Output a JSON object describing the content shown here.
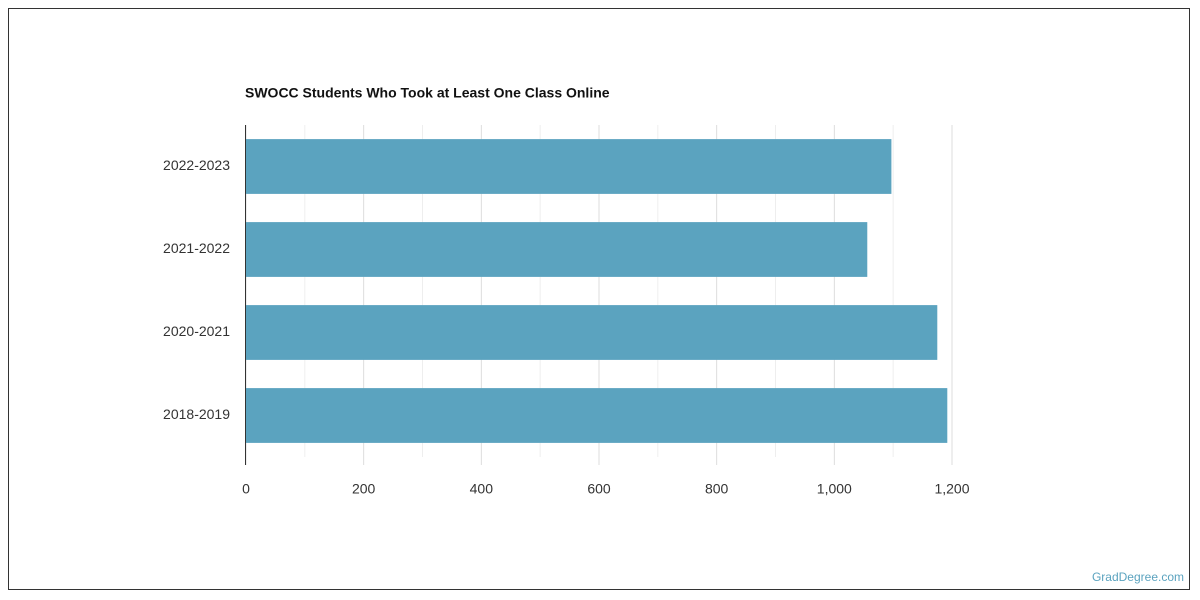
{
  "chart_data": {
    "type": "bar",
    "orientation": "horizontal",
    "title": "SWOCC Students Who Took at Least One Class Online",
    "categories": [
      "2022-2023",
      "2021-2022",
      "2020-2021",
      "2018-2019"
    ],
    "values": [
      1097,
      1056,
      1175,
      1192
    ],
    "color": "#5ba3bf",
    "xlim": [
      0,
      1200
    ],
    "xticks": [
      0,
      200,
      400,
      600,
      800,
      {
        "value": 1000,
        "label": "1,000"
      },
      {
        "value": 1200,
        "label": "1,200"
      }
    ],
    "x_minor_ticks": [
      100,
      300,
      500,
      700,
      900,
      1100
    ],
    "grid": true,
    "source": "GradDegree.com"
  }
}
